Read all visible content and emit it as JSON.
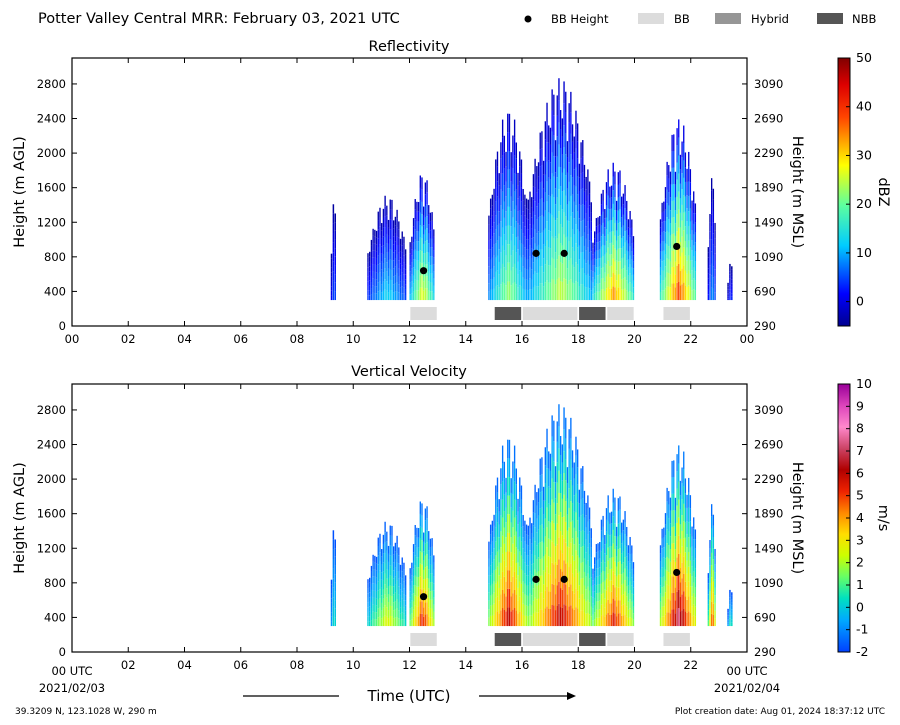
{
  "header": {
    "title": "Potter Valley Central MRR:  February 03, 2021 UTC",
    "legend": [
      {
        "label": "BB Height",
        "kind": "marker",
        "color": "#000000"
      },
      {
        "label": "BB",
        "kind": "swatch",
        "color": "#dcdcdc"
      },
      {
        "label": "Hybrid",
        "kind": "swatch",
        "color": "#969696"
      },
      {
        "label": "NBB",
        "kind": "swatch",
        "color": "#555555"
      }
    ]
  },
  "footer": {
    "location": "39.3209 N, 123.1028 W, 290 m",
    "creation": "Plot creation date: Aug 01, 2024 18:37:12 UTC",
    "xlabel": "Time (UTC)",
    "start_label": "00 UTC",
    "start_date": "2021/02/03",
    "end_label": "00 UTC",
    "end_date": "2021/02/04"
  },
  "chart_data": [
    {
      "type": "heatmap",
      "title": "Reflectivity",
      "ylabel_left": "Height (m AGL)",
      "ylabel_right": "Height (m MSL)",
      "xlim": [
        0,
        24
      ],
      "ylim": [
        0,
        3100
      ],
      "x_ticks": [
        "00",
        "02",
        "04",
        "06",
        "08",
        "10",
        "12",
        "14",
        "16",
        "18",
        "20",
        "22",
        "00"
      ],
      "y_ticks_left": [
        0,
        400,
        800,
        1200,
        1600,
        2000,
        2400,
        2800
      ],
      "y_ticks_right": [
        290,
        690,
        1090,
        1490,
        1890,
        2290,
        2690,
        3090
      ],
      "colorbar": {
        "label": "dBZ",
        "min": -5,
        "max": 50,
        "ticks": [
          0,
          10,
          20,
          30,
          40,
          50
        ]
      },
      "echo_periods": [
        {
          "start": 9.2,
          "end": 9.4,
          "top": 1500,
          "peak": 5
        },
        {
          "start": 10.5,
          "end": 11.9,
          "top": 1520,
          "peak": 12
        },
        {
          "start": 12.0,
          "end": 12.9,
          "top": 1800,
          "peak": 28
        },
        {
          "start": 14.8,
          "end": 16.2,
          "top": 2520,
          "peak": 22
        },
        {
          "start": 16.2,
          "end": 18.5,
          "top": 2880,
          "peak": 25
        },
        {
          "start": 18.5,
          "end": 20.0,
          "top": 1900,
          "peak": 35
        },
        {
          "start": 20.9,
          "end": 22.2,
          "top": 2420,
          "peak": 40
        },
        {
          "start": 22.6,
          "end": 22.9,
          "top": 1750,
          "peak": 8
        },
        {
          "start": 23.3,
          "end": 23.5,
          "top": 750,
          "peak": 3
        }
      ],
      "bb_heights": [
        {
          "x": 12.5,
          "y": 640
        },
        {
          "x": 16.5,
          "y": 840
        },
        {
          "x": 17.5,
          "y": 840
        },
        {
          "x": 21.5,
          "y": 920
        }
      ],
      "bb_type_bar": [
        {
          "start": 12.0,
          "end": 13.0,
          "type": "BB"
        },
        {
          "start": 15.0,
          "end": 16.0,
          "type": "NBB"
        },
        {
          "start": 16.0,
          "end": 18.0,
          "type": "BB"
        },
        {
          "start": 18.0,
          "end": 19.0,
          "type": "NBB"
        },
        {
          "start": 19.0,
          "end": 20.0,
          "type": "BB"
        },
        {
          "start": 21.0,
          "end": 22.0,
          "type": "BB"
        }
      ]
    },
    {
      "type": "heatmap",
      "title": "Vertical Velocity",
      "ylabel_left": "Height (m AGL)",
      "ylabel_right": "Height (m MSL)",
      "xlim": [
        0,
        24
      ],
      "ylim": [
        0,
        3100
      ],
      "x_ticks": [
        "",
        "02",
        "04",
        "06",
        "08",
        "10",
        "12",
        "14",
        "16",
        "18",
        "20",
        "22",
        ""
      ],
      "y_ticks_left": [
        0,
        400,
        800,
        1200,
        1600,
        2000,
        2400,
        2800
      ],
      "y_ticks_right": [
        290,
        690,
        1090,
        1490,
        1890,
        2290,
        2690,
        3090
      ],
      "colorbar": {
        "label": "m/s",
        "min": -2,
        "max": 10,
        "ticks": [
          -2,
          -1,
          0,
          1,
          2,
          3,
          4,
          5,
          6,
          7,
          8,
          9,
          10
        ]
      },
      "echo_periods": [
        {
          "start": 9.2,
          "end": 9.4,
          "top": 1500,
          "peak": 0.8
        },
        {
          "start": 10.5,
          "end": 11.9,
          "top": 1520,
          "peak": 3
        },
        {
          "start": 12.0,
          "end": 12.9,
          "top": 1800,
          "peak": 6
        },
        {
          "start": 14.8,
          "end": 16.2,
          "top": 2520,
          "peak": 6.5
        },
        {
          "start": 16.2,
          "end": 18.5,
          "top": 2880,
          "peak": 6.5
        },
        {
          "start": 18.5,
          "end": 20.0,
          "top": 1900,
          "peak": 6
        },
        {
          "start": 20.9,
          "end": 22.2,
          "top": 2420,
          "peak": 7.5
        },
        {
          "start": 22.6,
          "end": 22.9,
          "top": 1750,
          "peak": 5.5
        },
        {
          "start": 23.3,
          "end": 23.5,
          "top": 750,
          "peak": 1
        }
      ],
      "bb_heights": [
        {
          "x": 12.5,
          "y": 640
        },
        {
          "x": 16.5,
          "y": 840
        },
        {
          "x": 17.5,
          "y": 840
        },
        {
          "x": 21.5,
          "y": 920
        }
      ],
      "bb_type_bar": [
        {
          "start": 12.0,
          "end": 13.0,
          "type": "BB"
        },
        {
          "start": 15.0,
          "end": 16.0,
          "type": "NBB"
        },
        {
          "start": 16.0,
          "end": 18.0,
          "type": "BB"
        },
        {
          "start": 18.0,
          "end": 19.0,
          "type": "NBB"
        },
        {
          "start": 19.0,
          "end": 20.0,
          "type": "BB"
        },
        {
          "start": 21.0,
          "end": 22.0,
          "type": "BB"
        }
      ]
    }
  ]
}
